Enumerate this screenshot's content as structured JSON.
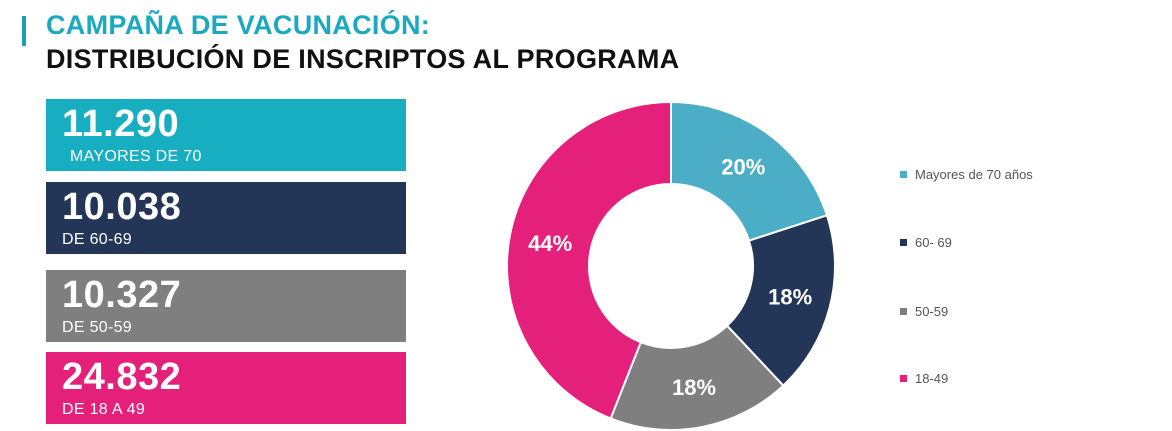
{
  "header": {
    "title": "CAMPAÑA DE VACUNACIÓN:",
    "subtitle": "DISTRIBUCIÓN DE INSCRIPTOS AL PROGRAMA"
  },
  "cards": [
    {
      "value": "11.290",
      "label": "MAYORES DE 70",
      "color": "#17aec1"
    },
    {
      "value": "10.038",
      "label": "DE 60-69",
      "color": "#233657"
    },
    {
      "value": "10.327",
      "label": "DE 50-59",
      "color": "#7f7f7f"
    },
    {
      "value": "24.832",
      "label": "DE 18 A 49",
      "color": "#e5207a"
    }
  ],
  "chart_data": {
    "type": "pie",
    "variant": "donut",
    "title": "",
    "legend_position": "right",
    "categories": [
      "Mayores de 70 años",
      "60- 69",
      "50-59",
      "18-49"
    ],
    "values": [
      20,
      18,
      18,
      44
    ],
    "labels": [
      "20%",
      "18%",
      "18%",
      "44%"
    ],
    "colors": [
      "#4badc6",
      "#233657",
      "#7f7f7f",
      "#e5207a"
    ]
  }
}
